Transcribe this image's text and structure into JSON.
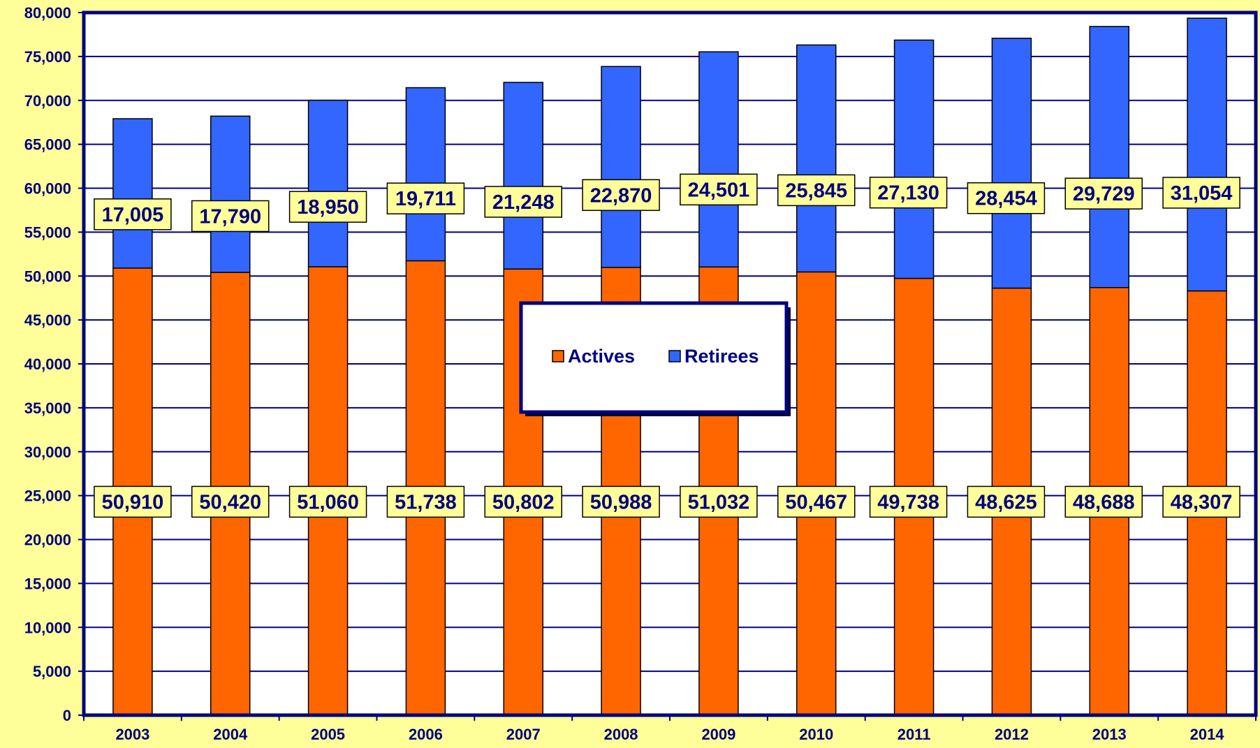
{
  "chart_data": {
    "type": "bar",
    "stacked": true,
    "title": "",
    "xlabel": "",
    "ylabel": "",
    "categories": [
      "2003",
      "2004",
      "2005",
      "2006",
      "2007",
      "2008",
      "2009",
      "2010",
      "2011",
      "2012",
      "2013",
      "2014"
    ],
    "series": [
      {
        "name": "Actives",
        "color": "#FF6600",
        "values": [
          50910,
          50420,
          51060,
          51738,
          50802,
          50988,
          51032,
          50467,
          49738,
          48625,
          48688,
          48307
        ],
        "labels": [
          "50,910",
          "50,420",
          "51,060",
          "51,738",
          "50,802",
          "50,988",
          "51,032",
          "50,467",
          "49,738",
          "48,625",
          "48,688",
          "48,307"
        ]
      },
      {
        "name": "Retirees",
        "color": "#3366FF",
        "values": [
          17005,
          17790,
          18950,
          19711,
          21248,
          22870,
          24501,
          25845,
          27130,
          28454,
          29729,
          31054
        ],
        "labels": [
          "17,005",
          "17,790",
          "18,950",
          "19,711",
          "21,248",
          "22,870",
          "24,501",
          "25,845",
          "27,130",
          "28,454",
          "29,729",
          "31,054"
        ]
      }
    ],
    "ylim": [
      0,
      80000
    ],
    "yticks": [
      0,
      5000,
      10000,
      15000,
      20000,
      25000,
      30000,
      35000,
      40000,
      45000,
      50000,
      55000,
      60000,
      65000,
      70000,
      75000,
      80000
    ],
    "ytick_labels": [
      "0",
      "5,000",
      "10,000",
      "15,000",
      "20,000",
      "25,000",
      "30,000",
      "35,000",
      "40,000",
      "45,000",
      "50,000",
      "55,000",
      "60,000",
      "65,000",
      "70,000",
      "75,000",
      "80,000"
    ],
    "grid": true,
    "legend": {
      "placement": "center",
      "entries": [
        "Actives",
        "Retirees"
      ]
    },
    "colors": {
      "background": "#FFFF99",
      "plot_background": "#FFFFFF",
      "axis": "#000080",
      "label_box_fill": "#FFFF99",
      "text": "#000080"
    }
  }
}
